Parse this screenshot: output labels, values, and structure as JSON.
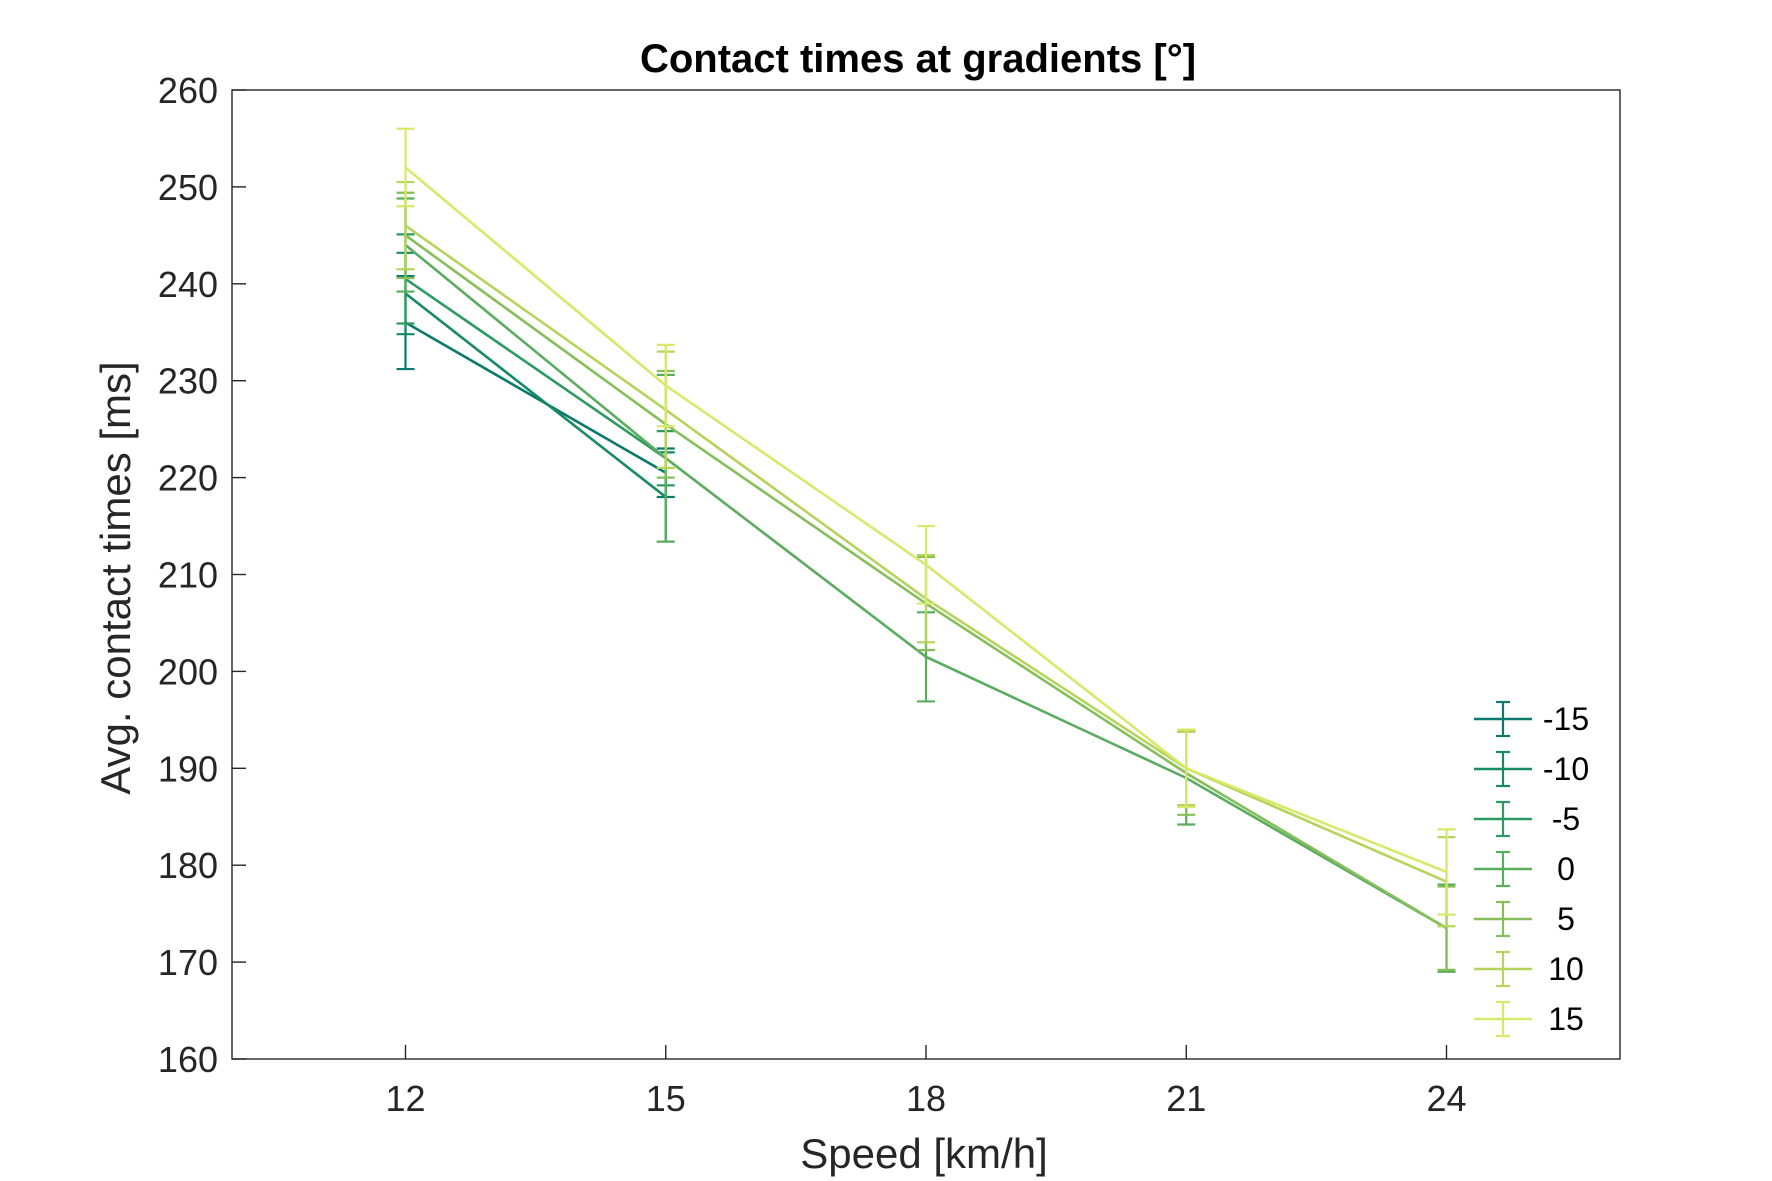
{
  "chart_data": {
    "type": "line",
    "title": "Contact times at gradients [°]",
    "xlabel": "Speed [km/h]",
    "ylabel": "Avg. contact times [ms]",
    "xlim": [
      10,
      26
    ],
    "ylim": [
      160,
      260
    ],
    "x_ticks": [
      12,
      15,
      18,
      21,
      24
    ],
    "y_ticks": [
      160,
      170,
      180,
      190,
      200,
      210,
      220,
      230,
      240,
      250,
      260
    ],
    "legend_position": "bottom-right",
    "grid": false,
    "series": [
      {
        "name": "-15",
        "color": "#0b7a6a",
        "points": [
          {
            "x": 12,
            "y": 236,
            "err": 4.8
          },
          {
            "x": 15,
            "y": 220.5,
            "err": 2.5
          }
        ]
      },
      {
        "name": "-10",
        "color": "#168a64",
        "points": [
          {
            "x": 12,
            "y": 239,
            "err": 4.2
          },
          {
            "x": 15,
            "y": 218,
            "err": 4.6
          }
        ]
      },
      {
        "name": "-5",
        "color": "#2d9a62",
        "points": [
          {
            "x": 12,
            "y": 240.5,
            "err": 4.6
          },
          {
            "x": 15,
            "y": 222,
            "err": 2.8
          }
        ]
      },
      {
        "name": "0",
        "color": "#5aac5e",
        "points": [
          {
            "x": 12,
            "y": 244,
            "err": 4.8
          },
          {
            "x": 15,
            "y": 222,
            "err": 8.6
          },
          {
            "x": 18,
            "y": 201.5,
            "err": 4.6
          },
          {
            "x": 21,
            "y": 189,
            "err": 4.8
          },
          {
            "x": 24,
            "y": 173.5,
            "err": 4.5
          }
        ]
      },
      {
        "name": "5",
        "color": "#85be5a",
        "points": [
          {
            "x": 12,
            "y": 245,
            "err": 4.4
          },
          {
            "x": 15,
            "y": 225.5,
            "err": 5.5
          },
          {
            "x": 18,
            "y": 207,
            "err": 4.8
          },
          {
            "x": 21,
            "y": 189.5,
            "err": 4.3
          },
          {
            "x": 24,
            "y": 173.5,
            "err": 4.3
          }
        ]
      },
      {
        "name": "10",
        "color": "#b5d45c",
        "points": [
          {
            "x": 12,
            "y": 246,
            "err": 4.5
          },
          {
            "x": 15,
            "y": 227,
            "err": 6
          },
          {
            "x": 18,
            "y": 207.5,
            "err": 4.5
          },
          {
            "x": 21,
            "y": 190,
            "err": 3.8
          },
          {
            "x": 24,
            "y": 178.3,
            "err": 4.6
          }
        ]
      },
      {
        "name": "15",
        "color": "#d8e86a",
        "points": [
          {
            "x": 12,
            "y": 252,
            "err": 4
          },
          {
            "x": 15,
            "y": 229.5,
            "err": 4.2
          },
          {
            "x": 18,
            "y": 211,
            "err": 4
          },
          {
            "x": 21,
            "y": 190,
            "err": 4
          },
          {
            "x": 24,
            "y": 179.3,
            "err": 4.4
          }
        ]
      }
    ]
  }
}
